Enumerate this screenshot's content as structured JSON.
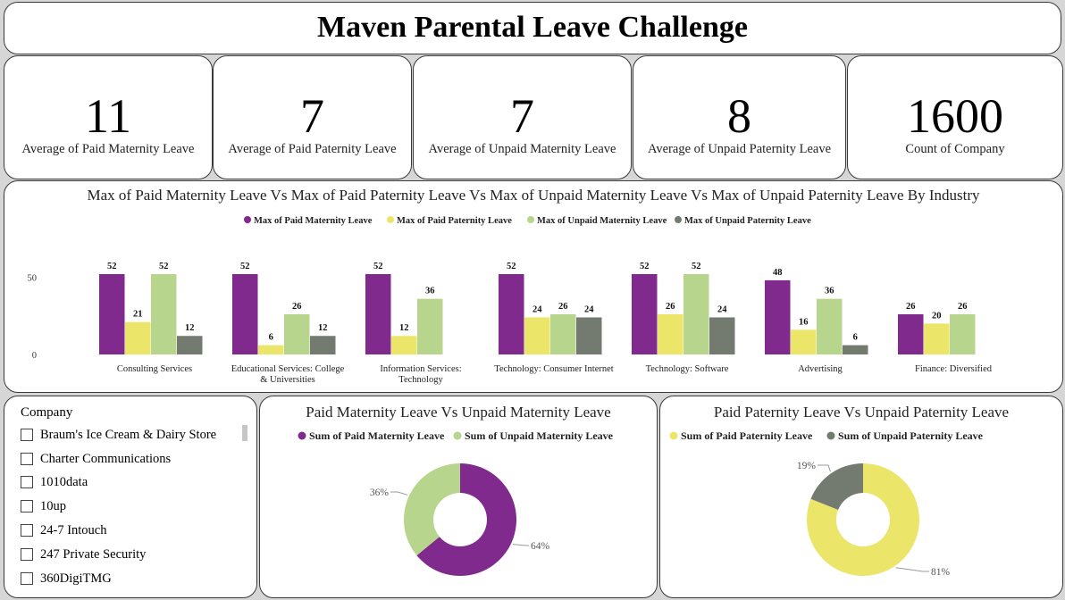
{
  "title": "Maven Parental Leave Challenge",
  "kpis": [
    {
      "value": "11",
      "label": "Average of Paid Maternity Leave"
    },
    {
      "value": "7",
      "label": "Average of Paid Paternity Leave"
    },
    {
      "value": "7",
      "label": "Average of Unpaid Maternity Leave"
    },
    {
      "value": "8",
      "label": "Average of Unpaid Paternity Leave"
    },
    {
      "value": "1600",
      "label": "Count of Company"
    }
  ],
  "slicer": {
    "title": "Company",
    "items": [
      "Braum's Ice Cream & Dairy Store",
      "Charter Communications",
      "1010data",
      "10up",
      "24-7 Intouch",
      "247 Private Security",
      "360DigiTMG"
    ]
  },
  "colors": {
    "paid_maternity": "#7f2a8c",
    "paid_paternity": "#ebe56a",
    "unpaid_maternity": "#b8d58e",
    "unpaid_paternity": "#737a70"
  },
  "chart_data": [
    {
      "type": "bar",
      "title": "Max of Paid Maternity Leave Vs Max of Paid Paternity Leave Vs Max of Unpaid Maternity Leave Vs Max of Unpaid Paternity Leave By Industry",
      "categories": [
        "Consulting Services",
        "Educational Services: College & Universities",
        "Information Services: Technology",
        "Technology: Consumer Internet",
        "Technology: Software",
        "Advertising",
        "Finance: Diversified"
      ],
      "series": [
        {
          "name": "Max of Paid Maternity Leave",
          "values": [
            52,
            52,
            52,
            52,
            52,
            48,
            26
          ]
        },
        {
          "name": "Max of Paid Paternity Leave",
          "values": [
            21,
            6,
            12,
            24,
            26,
            16,
            20
          ]
        },
        {
          "name": "Max of Unpaid Maternity Leave",
          "values": [
            52,
            26,
            36,
            26,
            52,
            36,
            26
          ]
        },
        {
          "name": "Max of Unpaid Paternity Leave",
          "values": [
            12,
            12,
            null,
            24,
            24,
            6,
            null
          ]
        }
      ],
      "yticks": [
        0,
        50
      ],
      "ylim": [
        0,
        52
      ],
      "legend": "top-center"
    },
    {
      "type": "pie",
      "title": "Paid Maternity Leave Vs Unpaid Maternity Leave",
      "labels": [
        "Sum of Paid Maternity Leave",
        "Sum of Unpaid Maternity Leave"
      ],
      "values": [
        64,
        36
      ],
      "value_labels": [
        "64%",
        "36%"
      ],
      "legend": "top-center"
    },
    {
      "type": "pie",
      "title": "Paid Paternity Leave Vs Unpaid Paternity Leave",
      "labels": [
        "Sum of Paid Paternity Leave",
        "Sum of Unpaid Paternity Leave"
      ],
      "values": [
        81,
        19
      ],
      "value_labels": [
        "81%",
        "19%"
      ],
      "legend": "top-center"
    }
  ]
}
